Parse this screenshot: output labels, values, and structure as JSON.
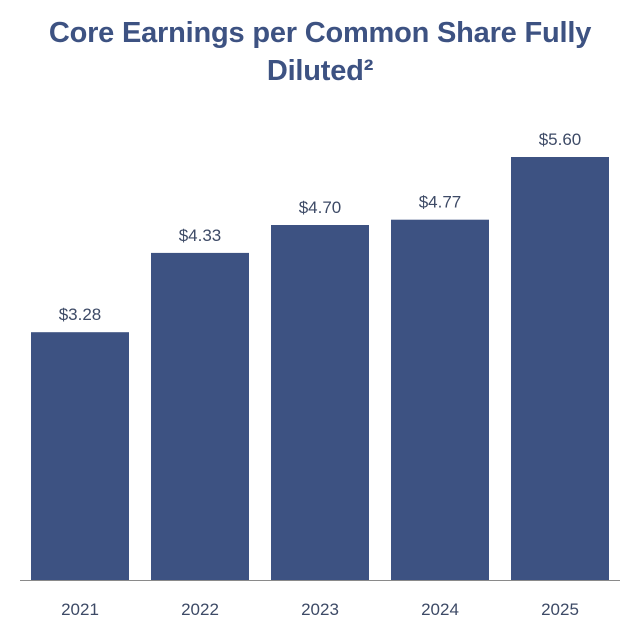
{
  "title_line1": "Core Earnings per Common Share Fully",
  "title_line2": "Diluted²",
  "colors": {
    "bar": "#3d5282",
    "title": "#3d5282",
    "label": "#3d4a66",
    "axis": "#8a8a8a"
  },
  "chart_data": {
    "type": "bar",
    "title": "Core Earnings per Common Share Fully Diluted²",
    "xlabel": "",
    "ylabel": "",
    "categories": [
      "2021",
      "2022",
      "2023",
      "2024",
      "2025"
    ],
    "values": [
      3.28,
      4.33,
      4.7,
      4.77,
      5.6
    ],
    "value_labels": [
      "$3.28",
      "$4.33",
      "$4.70",
      "$4.77",
      "$5.60"
    ],
    "ylim": [
      0,
      5.6
    ],
    "grid": false,
    "legend": "none"
  }
}
